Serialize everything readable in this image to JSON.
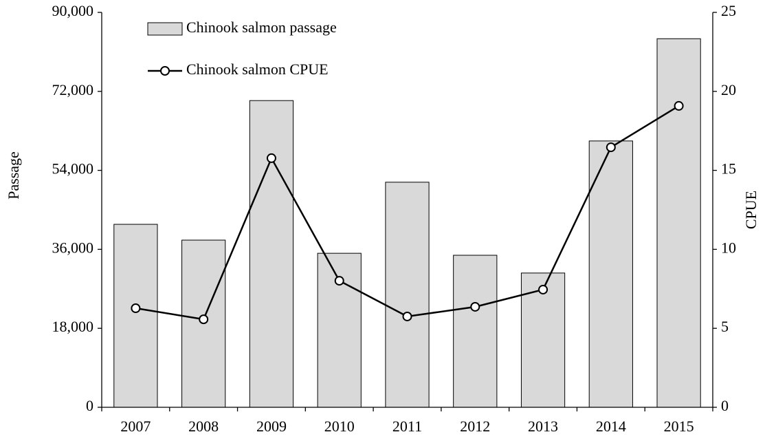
{
  "chart_data": {
    "type": "bar-line",
    "ylabel": "Passage",
    "y2label": "CPUE",
    "categories": [
      "2007",
      "2008",
      "2009",
      "2010",
      "2011",
      "2012",
      "2013",
      "2014",
      "2015"
    ],
    "series": [
      {
        "name": "Chinook salmon passage",
        "type": "bar",
        "color": "#d9d9d9",
        "values": [
          41700,
          38100,
          69900,
          35100,
          51300,
          34650,
          30600,
          60700,
          84000
        ]
      },
      {
        "name": "Chinook salmon CPUE",
        "type": "line",
        "axis": "y2",
        "color": "#000000",
        "values": [
          6.27,
          5.57,
          15.77,
          8.01,
          5.75,
          6.36,
          7.45,
          16.46,
          19.08
        ]
      }
    ],
    "ylim": [
      0,
      90000
    ],
    "yticks": [
      {
        "value": 0,
        "label": "0"
      },
      {
        "value": 18000,
        "label": "18,000"
      },
      {
        "value": 36000,
        "label": "36,000"
      },
      {
        "value": 54000,
        "label": "54,000"
      },
      {
        "value": 72000,
        "label": "72,000"
      },
      {
        "value": 90000,
        "label": "90,000"
      }
    ],
    "y2lim": [
      0,
      25
    ],
    "y2ticks": [
      0,
      5,
      10,
      15,
      20,
      25
    ],
    "grid": false,
    "legend": "top-left"
  }
}
